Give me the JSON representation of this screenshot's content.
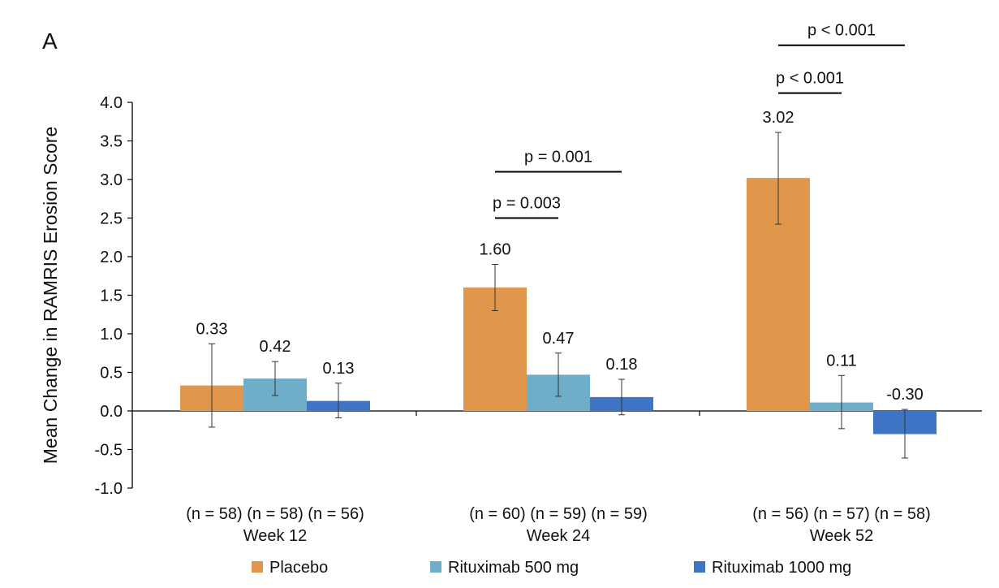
{
  "panel_label": "A",
  "chart_data": {
    "type": "bar",
    "ylabel": "Mean Change in RAMRIS Erosion Score",
    "ylim": [
      -1.0,
      4.0
    ],
    "ytick_step": 0.5,
    "yticks": [
      "-1.0",
      "-0.5",
      "0.0",
      "0.5",
      "1.0",
      "1.5",
      "2.0",
      "2.5",
      "3.0",
      "3.5",
      "4.0"
    ],
    "categories": [
      "Week 12",
      "Week 24",
      "Week 52"
    ],
    "legend_position": "bottom",
    "grid": false,
    "series": [
      {
        "name": "Placebo",
        "color": "#E0974B",
        "values": [
          0.33,
          1.6,
          3.02
        ],
        "labels": [
          "0.33",
          "1.60",
          "3.02"
        ],
        "error_low": [
          -0.21,
          1.3,
          2.42
        ],
        "error_high": [
          0.87,
          1.9,
          3.61
        ],
        "n": [
          "(n = 58)",
          "(n = 60)",
          "(n = 56)"
        ]
      },
      {
        "name": "Rituximab 500 mg",
        "color": "#6FAEC8",
        "values": [
          0.42,
          0.47,
          0.11
        ],
        "labels": [
          "0.42",
          "0.47",
          "0.11"
        ],
        "error_low": [
          0.2,
          0.19,
          -0.23
        ],
        "error_high": [
          0.64,
          0.75,
          0.46
        ],
        "n": [
          "(n = 58)",
          "(n = 59)",
          "(n = 57)"
        ]
      },
      {
        "name": "Rituximab 1000 mg",
        "color": "#3F74C4",
        "values": [
          0.13,
          0.18,
          -0.3
        ],
        "labels": [
          "0.13",
          "0.18",
          "-0.30"
        ],
        "error_low": [
          -0.09,
          -0.05,
          -0.61
        ],
        "error_high": [
          0.36,
          0.41,
          0.02
        ],
        "n": [
          "(n = 56)",
          "(n = 59)",
          "(n = 58)"
        ]
      }
    ],
    "significance": [
      {
        "category": 1,
        "from_series": 0,
        "to_series": 1,
        "label": "p = 0.003",
        "y": 2.5
      },
      {
        "category": 1,
        "from_series": 0,
        "to_series": 2,
        "label": "p = 0.001",
        "y": 3.1
      },
      {
        "category": 2,
        "from_series": 0,
        "to_series": 1,
        "label": "p < 0.001",
        "y": 4.12
      },
      {
        "category": 2,
        "from_series": 0,
        "to_series": 2,
        "label": "p < 0.001",
        "y": 4.74
      }
    ]
  }
}
